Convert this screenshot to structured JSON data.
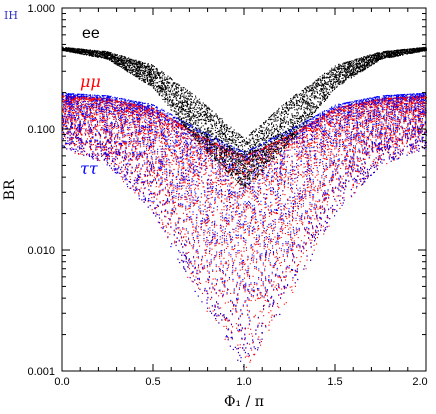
{
  "chart_data": {
    "type": "scatter",
    "title": "",
    "corner_label": "IH",
    "xlabel": "Φ₁ / π",
    "ylabel": "BR",
    "xlim": [
      0.0,
      2.0
    ],
    "ylim": [
      0.001,
      1.0
    ],
    "yscale": "log",
    "x_ticks": [
      "0.0",
      "0.5",
      "1.0",
      "1.5",
      "2.0"
    ],
    "y_ticks": [
      "0.001",
      "0.010",
      "0.100",
      "1.000"
    ],
    "grid": false,
    "series": [
      {
        "name": "ee",
        "color": "#000000",
        "band_upper": [
          [
            0.0,
            0.48
          ],
          [
            0.25,
            0.44
          ],
          [
            0.5,
            0.34
          ],
          [
            0.75,
            0.18
          ],
          [
            1.0,
            0.085
          ],
          [
            1.25,
            0.18
          ],
          [
            1.5,
            0.34
          ],
          [
            1.75,
            0.44
          ],
          [
            2.0,
            0.48
          ]
        ],
        "band_lower": [
          [
            0.0,
            0.45
          ],
          [
            0.25,
            0.38
          ],
          [
            0.5,
            0.22
          ],
          [
            0.75,
            0.075
          ],
          [
            1.0,
            0.032
          ],
          [
            1.25,
            0.075
          ],
          [
            1.5,
            0.22
          ],
          [
            1.75,
            0.38
          ],
          [
            2.0,
            0.45
          ]
        ]
      },
      {
        "name": "μμ",
        "color": "#ff0000",
        "band_upper": [
          [
            0.0,
            0.19
          ],
          [
            0.25,
            0.18
          ],
          [
            0.5,
            0.15
          ],
          [
            0.75,
            0.09
          ],
          [
            1.0,
            0.06
          ],
          [
            1.25,
            0.09
          ],
          [
            1.5,
            0.15
          ],
          [
            1.75,
            0.18
          ],
          [
            2.0,
            0.19
          ]
        ],
        "band_lower": [
          [
            0.0,
            0.07
          ],
          [
            0.25,
            0.05
          ],
          [
            0.5,
            0.02
          ],
          [
            0.75,
            0.004
          ],
          [
            1.0,
            0.001
          ],
          [
            1.25,
            0.004
          ],
          [
            1.5,
            0.02
          ],
          [
            1.75,
            0.05
          ],
          [
            2.0,
            0.07
          ]
        ]
      },
      {
        "name": "ττ",
        "color": "#0000ff",
        "band_upper": [
          [
            0.0,
            0.2
          ],
          [
            0.25,
            0.19
          ],
          [
            0.5,
            0.16
          ],
          [
            0.75,
            0.1
          ],
          [
            1.0,
            0.065
          ],
          [
            1.25,
            0.1
          ],
          [
            1.5,
            0.16
          ],
          [
            1.75,
            0.19
          ],
          [
            2.0,
            0.2
          ]
        ],
        "band_lower": [
          [
            0.0,
            0.07
          ],
          [
            0.25,
            0.05
          ],
          [
            0.5,
            0.02
          ],
          [
            0.75,
            0.004
          ],
          [
            1.0,
            0.001
          ],
          [
            1.25,
            0.004
          ],
          [
            1.5,
            0.02
          ],
          [
            1.75,
            0.05
          ],
          [
            2.0,
            0.07
          ]
        ]
      }
    ]
  },
  "colors": {
    "corner_label": "#3333cc",
    "ee_label": "#000000",
    "mumu_label": "#ff0000",
    "tautau_label": "#0000ff"
  }
}
